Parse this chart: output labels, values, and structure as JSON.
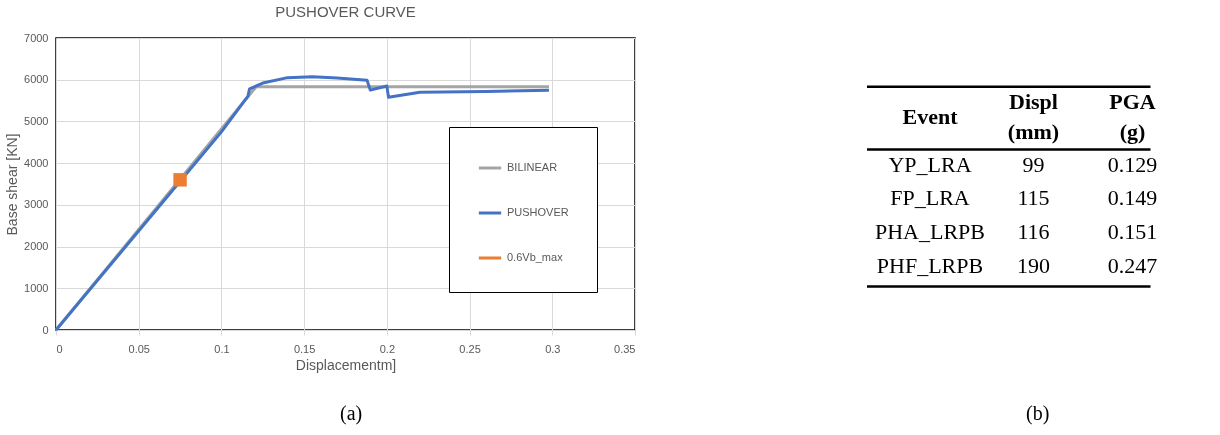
{
  "chart_data": [
    {
      "type": "line",
      "title": "PUSHOVER CURVE",
      "xlabel": "Displacementm]",
      "ylabel": "Base shear [KN]",
      "xlim": [
        0,
        0.35
      ],
      "xticks": [
        0,
        0.05,
        0.1,
        0.15,
        0.2,
        0.25,
        0.3,
        0.35
      ],
      "ylim": [
        0,
        7000
      ],
      "yticks": [
        0,
        1000,
        2000,
        3000,
        4000,
        5000,
        6000,
        7000
      ],
      "grid": true,
      "legend": "bottom right",
      "annotations": [
        "(a)"
      ],
      "series": [
        {
          "name": "BILINEAR",
          "type": "line",
          "color": "#a5a5a5",
          "x": [
            0,
            0.121,
            0.298
          ],
          "values": [
            0,
            5830,
            5830
          ]
        },
        {
          "name": "PUSHOVER",
          "type": "line",
          "color": "#4472c4",
          "x": [
            0,
            0.1,
            0.114,
            0.116,
            0.117,
            0.125,
            0.14,
            0.155,
            0.17,
            0.188,
            0.19,
            0.2,
            0.201,
            0.22,
            0.26,
            0.298
          ],
          "values": [
            0,
            4750,
            5500,
            5600,
            5780,
            5920,
            6050,
            6070,
            6040,
            5990,
            5750,
            5850,
            5580,
            5700,
            5720,
            5750
          ]
        },
        {
          "name": "0.6Vb_max",
          "type": "scatter",
          "marker": "square",
          "color": "#ed7d31",
          "x": [
            0.075
          ],
          "values": [
            3600
          ]
        }
      ]
    },
    {
      "type": "other",
      "xlabel": "Event",
      "categories": [
        "YP_LRA",
        "FP_LRA",
        "PHA_LRPB",
        "PHF_LRPB"
      ],
      "data_labels": true,
      "annotations": [
        "(b)"
      ],
      "series": [
        {
          "name": "Displ (mm)",
          "values": [
            99,
            115,
            116,
            190
          ]
        },
        {
          "name": "PGA (g)",
          "values": [
            0.129,
            0.149,
            0.151,
            0.247
          ]
        }
      ]
    }
  ]
}
